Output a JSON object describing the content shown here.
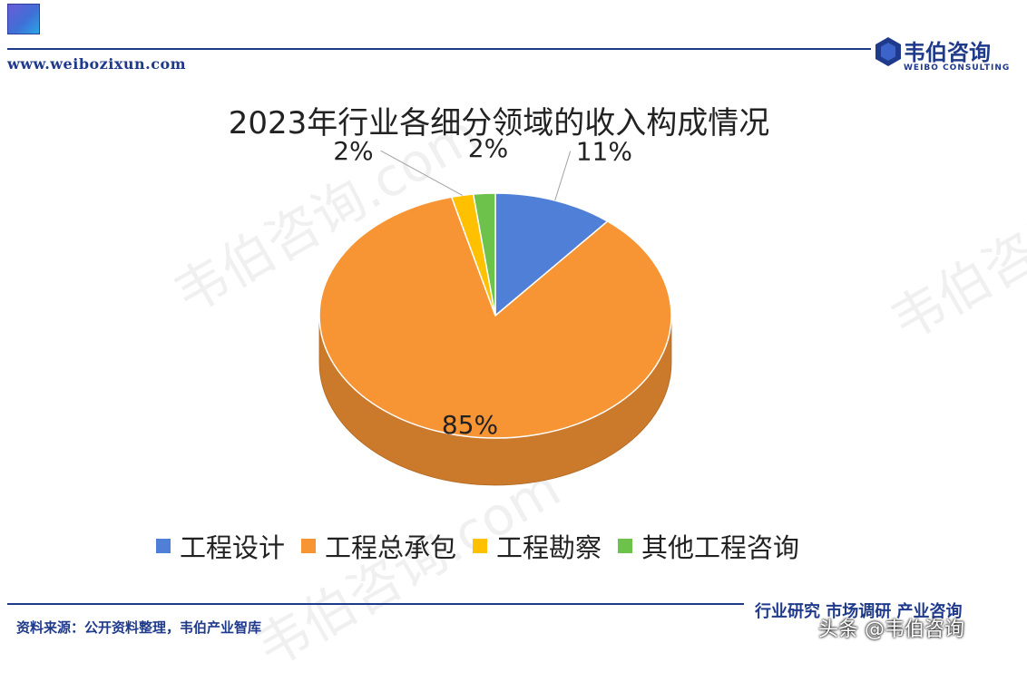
{
  "header": {
    "site_url": "www.weibozixun.com",
    "logo_name": "韦伯咨询",
    "logo_sub": "WEIBO CONSULTING"
  },
  "watermark_text": "韦伯咨询.com",
  "chart_data": {
    "type": "pie",
    "title": "2023年行业各细分领域的收入构成情况",
    "series": [
      {
        "name": "工程设计",
        "value": 11,
        "label": "11%",
        "color": "#4F7FD6"
      },
      {
        "name": "工程总承包",
        "value": 85,
        "label": "85%",
        "color": "#F79433"
      },
      {
        "name": "工程勘察",
        "value": 2,
        "label": "2%",
        "color": "#FFC000"
      },
      {
        "name": "其他工程咨询",
        "value": 2,
        "label": "2%",
        "color": "#6CC24A"
      }
    ],
    "legend_position": "bottom",
    "style": "3d"
  },
  "footer": {
    "source": "资料来源：公开资料整理，韦伯产业智库",
    "slogan": "行业研究  市场调研  产业咨询",
    "toutiao": "头条 @韦伯咨询"
  }
}
